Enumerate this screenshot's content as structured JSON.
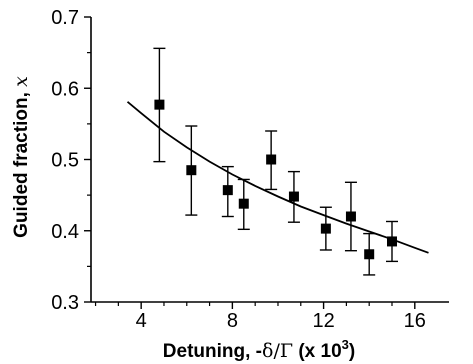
{
  "chart_data": {
    "type": "scatter",
    "xlabel": {
      "prefix": "Detuning, -",
      "delta": "δ",
      "slash": "/",
      "gamma": "Γ",
      "suffix": " (x 10",
      "exp": "3",
      "close": ")"
    },
    "ylabel": {
      "text": "Guided fraction, ",
      "var": "x"
    },
    "xlim": [
      1.8,
      17.5
    ],
    "ylim": [
      0.3,
      0.7
    ],
    "x_ticks": [
      4,
      8,
      12,
      16
    ],
    "y_ticks": [
      0.3,
      0.4,
      0.5,
      0.6,
      0.7
    ],
    "x_tick_labels": [
      "4",
      "8",
      "12",
      "16"
    ],
    "y_tick_labels": [
      "0.3",
      "0.4",
      "0.5",
      "0.6",
      "0.7"
    ],
    "series": [
      {
        "type": "scatter-errorbar",
        "x": [
          4.8,
          6.2,
          7.8,
          8.5,
          9.7,
          10.7,
          12.1,
          13.2,
          14.0,
          15.0
        ],
        "y": [
          0.577,
          0.485,
          0.457,
          0.438,
          0.5,
          0.448,
          0.403,
          0.42,
          0.367,
          0.385
        ],
        "yerr_low": [
          0.497,
          0.422,
          0.42,
          0.402,
          0.458,
          0.412,
          0.373,
          0.372,
          0.338,
          0.357
        ],
        "yerr_high": [
          0.656,
          0.547,
          0.49,
          0.472,
          0.54,
          0.483,
          0.433,
          0.468,
          0.396,
          0.413
        ]
      },
      {
        "type": "line",
        "x": [
          3.4,
          4.0,
          5.0,
          6.0,
          7.0,
          8.0,
          9.0,
          10.0,
          11.0,
          12.0,
          13.0,
          14.0,
          15.0,
          16.0,
          16.6
        ],
        "y": [
          0.581,
          0.565,
          0.539,
          0.517,
          0.497,
          0.479,
          0.463,
          0.448,
          0.434,
          0.422,
          0.41,
          0.399,
          0.388,
          0.376,
          0.369
        ]
      }
    ],
    "grid": false,
    "legend": "none"
  }
}
